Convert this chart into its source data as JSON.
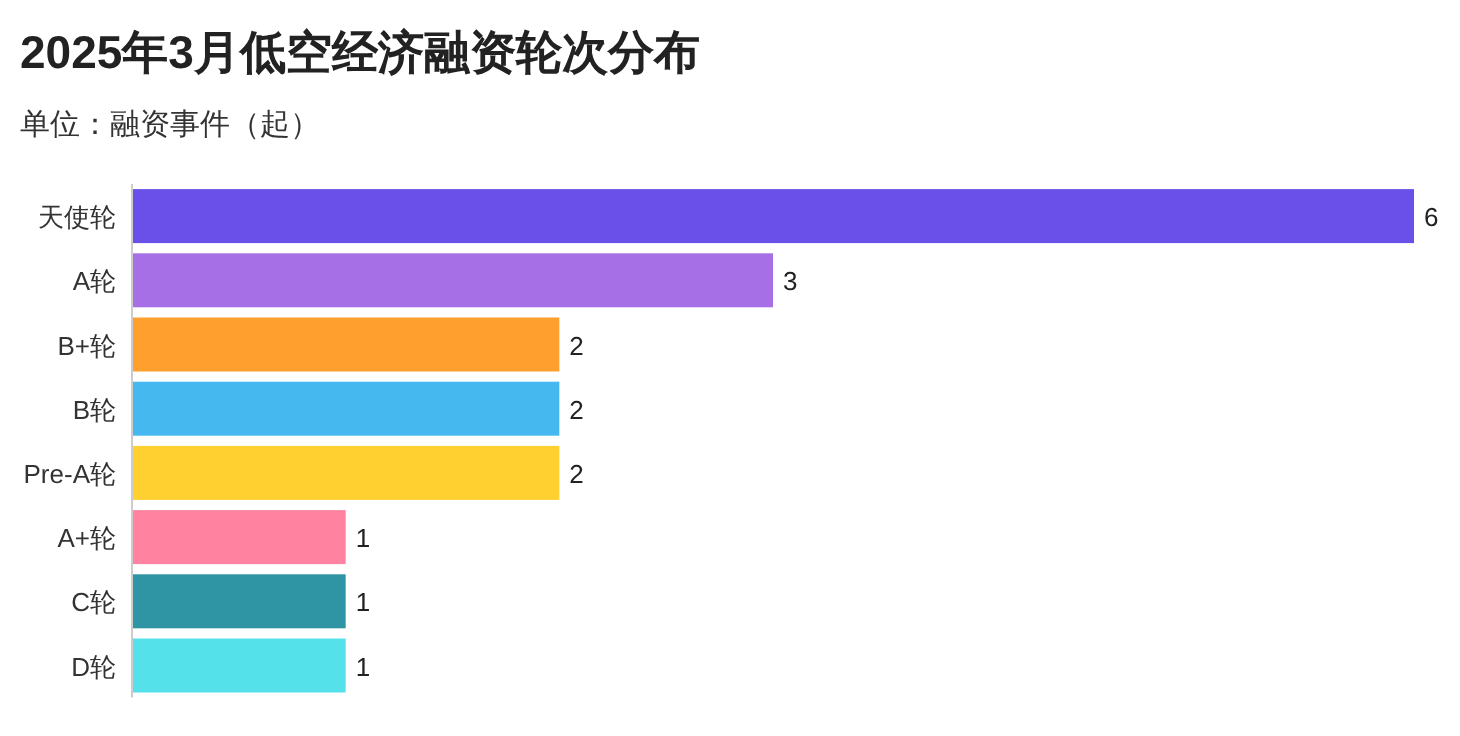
{
  "chart_data": {
    "type": "bar",
    "orientation": "horizontal",
    "title": "2025年3月低空经济融资轮次分布",
    "subtitle": "单位：融资事件（起）",
    "categories": [
      "天使轮",
      "A轮",
      "B+轮",
      "B轮",
      "Pre-A轮",
      "A+轮",
      "C轮",
      "D轮"
    ],
    "values": [
      6,
      3,
      2,
      2,
      2,
      1,
      1,
      1
    ],
    "colors": [
      "#6a50e8",
      "#a66fe6",
      "#ff9f2e",
      "#46b8f0",
      "#ffd030",
      "#ff82a0",
      "#2f95a4",
      "#55e1e9"
    ],
    "data_labels": true
  }
}
